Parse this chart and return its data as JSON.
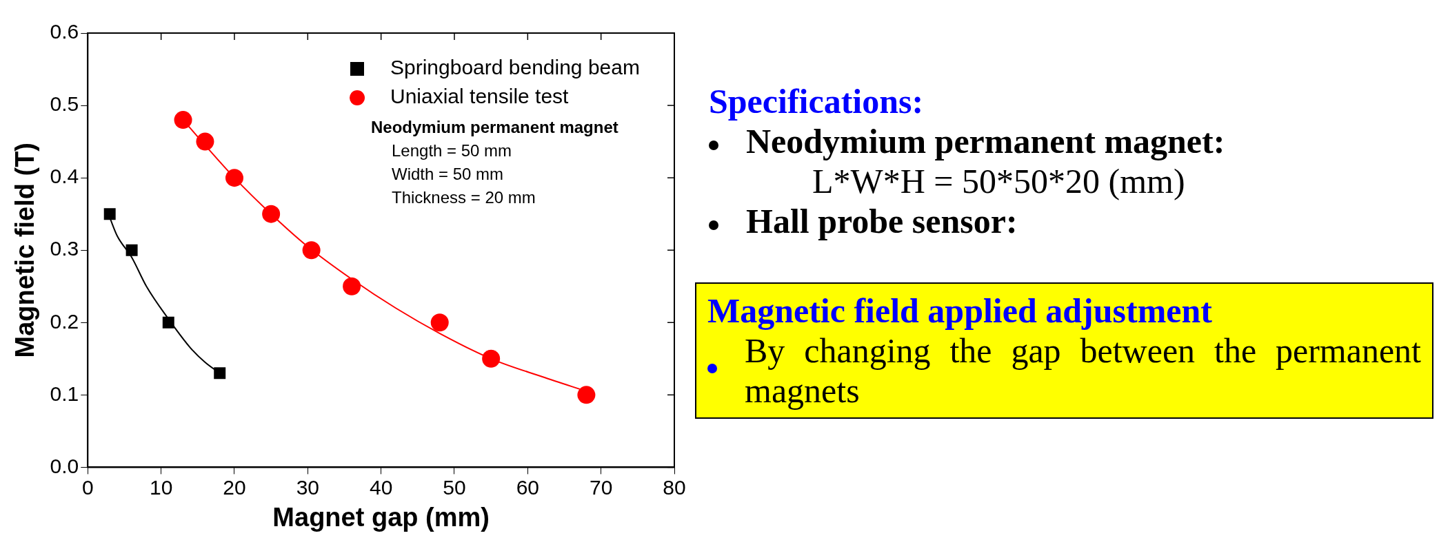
{
  "chart_data": {
    "type": "scatter",
    "xlabel": "Magnet gap (mm)",
    "ylabel": "Magnetic field (T)",
    "xlim": [
      0,
      80
    ],
    "xticks": [
      0,
      10,
      20,
      30,
      40,
      50,
      60,
      70,
      80
    ],
    "ylim": [
      0,
      0.6
    ],
    "yticks": [
      {
        "value": 0,
        "label": "0.0"
      },
      0.1,
      0.2,
      0.3,
      0.4,
      0.5,
      0.6
    ],
    "grid": false,
    "legend": "top right",
    "series": [
      {
        "name": "Springboard bending beam",
        "type": "scatter",
        "marker": "square",
        "color": "#000000",
        "x": [
          3,
          6,
          11,
          18
        ],
        "values": [
          0.35,
          0.3,
          0.2,
          0.13
        ]
      },
      {
        "name": "Uniaxial tensile test",
        "type": "scatter",
        "marker": "circle",
        "color": "#ff0000",
        "x": [
          13,
          16,
          20,
          25,
          30.5,
          36,
          48,
          55,
          68
        ],
        "values": [
          0.48,
          0.45,
          0.4,
          0.35,
          0.3,
          0.25,
          0.2,
          0.15,
          0.1
        ]
      },
      {
        "type": "line",
        "marker": "none",
        "color": "#000000",
        "x": [
          3,
          4,
          6,
          8,
          11,
          14,
          16,
          18
        ],
        "values": [
          0.345,
          0.32,
          0.29,
          0.25,
          0.205,
          0.165,
          0.145,
          0.13
        ]
      },
      {
        "type": "line",
        "marker": "none",
        "color": "#ff0000",
        "x": [
          13,
          16,
          20,
          25,
          30,
          36,
          42,
          48,
          55,
          62,
          68
        ],
        "values": [
          0.48,
          0.445,
          0.4,
          0.35,
          0.305,
          0.26,
          0.22,
          0.185,
          0.15,
          0.125,
          0.105
        ]
      }
    ],
    "annotations": [
      "Neodymium permanent magnet",
      "Length = 50 mm",
      "Width = 50 mm",
      "Thickness = 20 mm",
      "Specifications:",
      "Neodymium permanent magnet:",
      "L*W*H = 50*50*20 (mm)",
      "Hall probe sensor:",
      "Magnetic field applied adjustment",
      "By changing the gap between the permanent magnets"
    ]
  }
}
